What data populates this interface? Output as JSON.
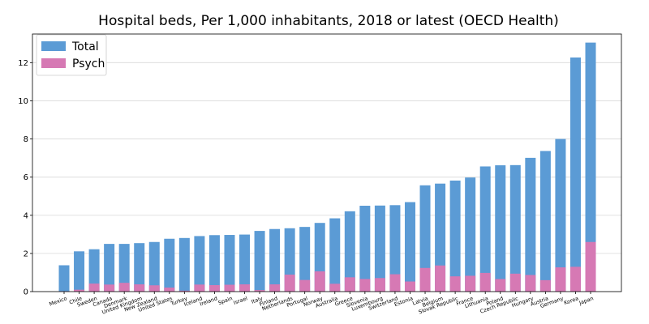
{
  "chart_data": {
    "type": "bar",
    "title": "Hospital beds, Per 1,000 inhabitants, 2018 or latest  (OECD Health)",
    "xlabel": "",
    "ylabel": "",
    "ylim": [
      0,
      13.5
    ],
    "yticks": [
      "0",
      "2",
      "4",
      "6",
      "8",
      "10",
      "12"
    ],
    "grid": "horizontal",
    "legend_position": "top-left",
    "categories": [
      "Mexico",
      "Chile",
      "Sweden",
      "Canada",
      "Denmark",
      "United Kingdom",
      "New Zealand",
      "United States",
      "Turkey",
      "Iceland",
      "Ireland",
      "Spain",
      "Israel",
      "Italy",
      "Finland",
      "Netherlands",
      "Portugal",
      "Norway",
      "Australia",
      "Greece",
      "Slovenia",
      "Luxembourg",
      "Switzerland",
      "Estonia",
      "Latvia",
      "Belgium",
      "Slovak Republic",
      "France",
      "Lithuania",
      "Poland",
      "Czech Republic",
      "Hungary",
      "Austria",
      "Germany",
      "Korea",
      "Japan"
    ],
    "series": [
      {
        "name": "Total",
        "color": "#5b9bd5",
        "values": [
          1.38,
          2.11,
          2.22,
          2.5,
          2.5,
          2.54,
          2.6,
          2.77,
          2.81,
          2.91,
          2.96,
          2.97,
          2.99,
          3.18,
          3.28,
          3.32,
          3.39,
          3.6,
          3.84,
          4.21,
          4.5,
          4.51,
          4.53,
          4.69,
          5.57,
          5.66,
          5.82,
          5.98,
          6.56,
          6.62,
          6.63,
          7.01,
          7.37,
          8.0,
          12.27,
          13.05
        ]
      },
      {
        "name": "Psych",
        "color": "#d679b4",
        "values": [
          0.02,
          0.1,
          0.42,
          0.37,
          0.46,
          0.38,
          0.33,
          0.21,
          0.05,
          0.37,
          0.34,
          0.36,
          0.38,
          0.08,
          0.38,
          0.89,
          0.61,
          1.06,
          0.41,
          0.75,
          0.66,
          0.71,
          0.91,
          0.53,
          1.24,
          1.37,
          0.8,
          0.83,
          0.98,
          0.66,
          0.94,
          0.87,
          0.6,
          1.27,
          1.3,
          2.6
        ]
      }
    ]
  }
}
